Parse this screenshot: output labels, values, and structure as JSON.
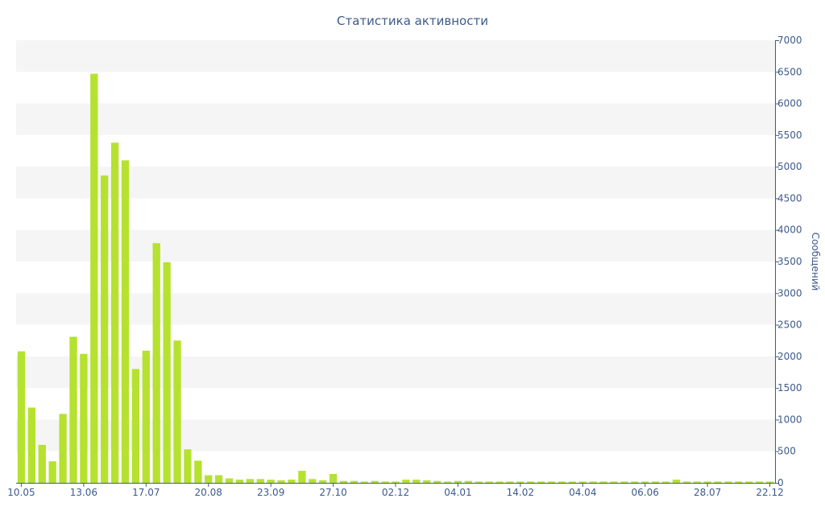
{
  "chart_data": {
    "type": "bar",
    "title": "Статистика активности",
    "xlabel": "",
    "ylabel": "Сообщений",
    "y_axis_position": "right",
    "ylim": [
      0,
      7000
    ],
    "yticks": [
      0,
      500,
      1000,
      1500,
      2000,
      2500,
      3000,
      3500,
      4000,
      4500,
      5000,
      5500,
      6000,
      6500,
      7000
    ],
    "x_tick_labels": [
      "10.05",
      "13.06",
      "17.07",
      "20.08",
      "23.09",
      "27.10",
      "02.12",
      "04.01",
      "14.02",
      "04.04",
      "06.06",
      "28.07",
      "22.12"
    ],
    "x_tick_label_bar_index": [
      0,
      6,
      12,
      18,
      24,
      30,
      36,
      42,
      48,
      54,
      60,
      66,
      72
    ],
    "grid": "horizontal alternating bands",
    "colors": {
      "bar": "#b5e22f",
      "band": "#f5f5f5",
      "axis": "#3d5a8c"
    },
    "values": [
      2080,
      1190,
      600,
      340,
      1090,
      2310,
      2040,
      6470,
      4860,
      5380,
      5100,
      1800,
      2090,
      3790,
      3490,
      2250,
      530,
      350,
      120,
      120,
      70,
      50,
      60,
      60,
      50,
      40,
      50,
      190,
      60,
      40,
      140,
      30,
      30,
      20,
      30,
      20,
      20,
      50,
      50,
      40,
      30,
      20,
      30,
      30,
      20,
      20,
      20,
      20,
      20,
      20,
      20,
      20,
      20,
      20,
      20,
      20,
      20,
      20,
      20,
      20,
      20,
      20,
      20,
      50,
      20,
      20,
      20,
      20,
      20,
      20,
      20,
      20,
      20
    ]
  }
}
